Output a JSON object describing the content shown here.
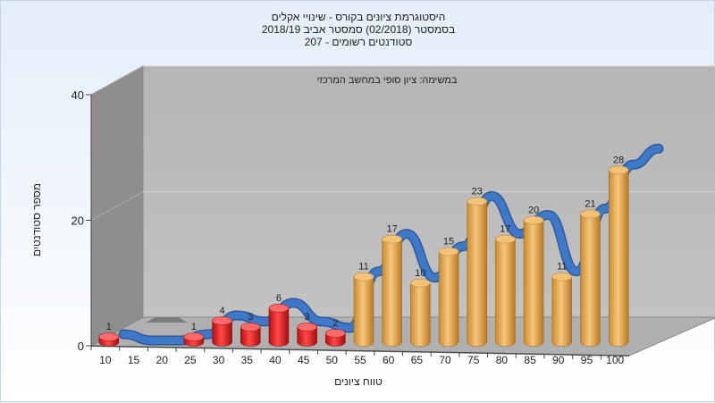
{
  "chart_data": {
    "type": "bar",
    "title": [
      "היסטוגרמת ציונים בקורס - שינויי אקלים",
      "בסמסטר  (02/2018)  סמסטר אביב 2018/19",
      "סטודנטים רשומים - 207"
    ],
    "xlabel": "טווח ציונים",
    "ylabel": "מספר סטודנטים",
    "annotation": "במשימה: ציון סופי במחשב המרכזי",
    "ylim": [
      0,
      40
    ],
    "yticks": [
      0,
      20,
      40
    ],
    "categories": [
      "10",
      "15",
      "20",
      "25",
      "30",
      "35",
      "40",
      "45",
      "50",
      "55",
      "60",
      "65",
      "70",
      "75",
      "80",
      "85",
      "90",
      "95",
      "100"
    ],
    "values": [
      1,
      0,
      0,
      1,
      4,
      3,
      6,
      3,
      2,
      11,
      17,
      10,
      15,
      23,
      17,
      20,
      11,
      21,
      28
    ],
    "colors": {
      "fail": "#d81e1e",
      "pass": "#e3a24c",
      "trend": "#3e78c9",
      "floor": "#b0b0b0",
      "wall_back": "#b7b7b7",
      "wall_left": "#8e8e8e"
    },
    "fail_below": 55,
    "grid": true,
    "legend": "none"
  }
}
